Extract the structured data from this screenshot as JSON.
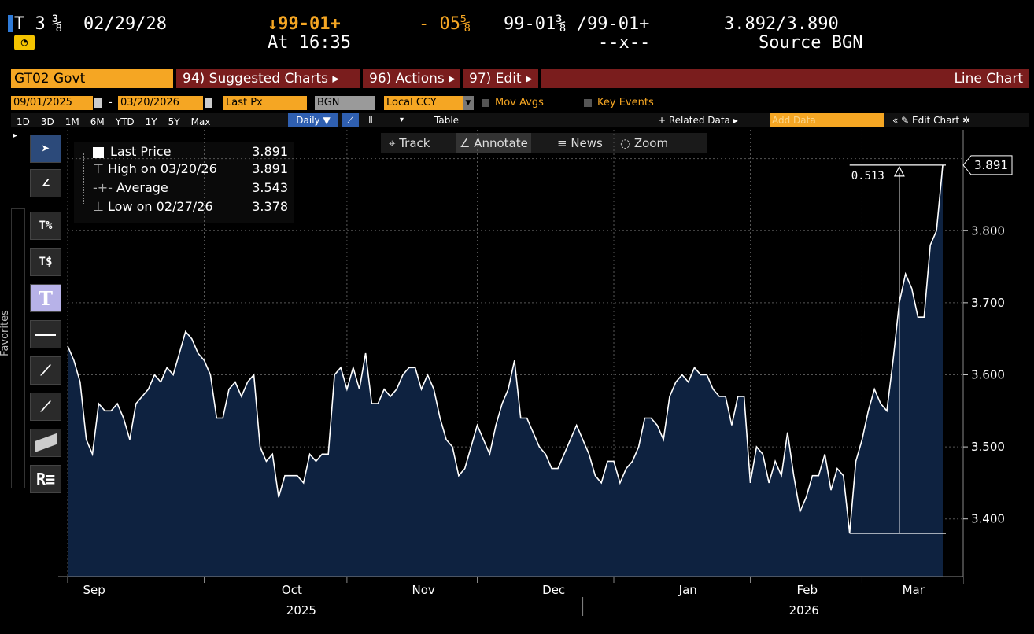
{
  "header": {
    "ticker": "T 3",
    "coupon_frac": "⅜",
    "maturity": "02/29/28",
    "price": "↓99-01+",
    "change": "- 05⅝",
    "bid_ask": "99-01⅜ /99-01+",
    "yield_pair": "3.892/3.890",
    "time": "At 16:35",
    "size": "--x--",
    "source": "Source BGN"
  },
  "menubar": {
    "security": "GT02 Govt",
    "suggested": "94) Suggested Charts ▸",
    "actions": "96) Actions ▸",
    "edit": "97) Edit ▸",
    "chart_type": "Line Chart"
  },
  "filters": {
    "start_date": "09/01/2025",
    "end_date": "03/20/2026",
    "field": "Last Px",
    "source": "BGN",
    "currency": "Local CCY",
    "mov_avgs": "Mov Avgs",
    "key_events": "Key Events"
  },
  "tabs": [
    "1D",
    "3D",
    "1M",
    "6M",
    "YTD",
    "1Y",
    "5Y",
    "Max"
  ],
  "period": "Daily ▼",
  "table_label": "Table",
  "related_data": "+ Related Data ▸",
  "add_data_placeholder": "Add Data",
  "edit_chart": "« ✎ Edit Chart ✲",
  "toolbar": {
    "track": "⌖ Track",
    "annotate": "∠ Annotate",
    "news": "≡ News",
    "zoom": "◌ Zoom"
  },
  "favorites_label": "Favorites",
  "legend": [
    {
      "label": "Last Price",
      "value": "3.891"
    },
    {
      "label": "High on 03/20/26",
      "value": "3.891"
    },
    {
      "label": "Average",
      "value": "3.543"
    },
    {
      "label": "Low on 02/27/26",
      "value": "3.378"
    }
  ],
  "measure_label": "0.513",
  "last_value_tag": "3.891",
  "colors": {
    "accent": "#f5a623",
    "fill": "#0e2240",
    "line": "#ffffff",
    "menu_red": "#7a1d1d"
  },
  "chart_data": {
    "type": "area",
    "ylim": [
      3.32,
      3.94
    ],
    "yticks": [
      "3.400",
      "3.500",
      "3.600",
      "3.700",
      "3.800"
    ],
    "ytick_values": [
      3.4,
      3.5,
      3.6,
      3.7,
      3.8
    ],
    "month_labels": [
      "Sep",
      "Oct",
      "Nov",
      "Dec",
      "Jan",
      "Feb",
      "Mar"
    ],
    "year_labels": [
      "2025",
      "2026"
    ],
    "y": [
      3.64,
      3.62,
      3.59,
      3.51,
      3.49,
      3.56,
      3.55,
      3.55,
      3.56,
      3.54,
      3.51,
      3.56,
      3.57,
      3.58,
      3.6,
      3.59,
      3.61,
      3.6,
      3.63,
      3.66,
      3.65,
      3.63,
      3.62,
      3.6,
      3.54,
      3.54,
      3.58,
      3.59,
      3.57,
      3.59,
      3.6,
      3.5,
      3.48,
      3.49,
      3.43,
      3.46,
      3.46,
      3.46,
      3.45,
      3.49,
      3.48,
      3.49,
      3.49,
      3.6,
      3.61,
      3.58,
      3.61,
      3.58,
      3.63,
      3.56,
      3.56,
      3.58,
      3.57,
      3.58,
      3.6,
      3.61,
      3.61,
      3.58,
      3.6,
      3.58,
      3.54,
      3.51,
      3.5,
      3.46,
      3.47,
      3.5,
      3.53,
      3.51,
      3.49,
      3.53,
      3.56,
      3.58,
      3.62,
      3.54,
      3.54,
      3.52,
      3.5,
      3.49,
      3.47,
      3.47,
      3.49,
      3.51,
      3.53,
      3.51,
      3.49,
      3.46,
      3.45,
      3.48,
      3.48,
      3.45,
      3.47,
      3.48,
      3.5,
      3.54,
      3.54,
      3.53,
      3.51,
      3.57,
      3.59,
      3.6,
      3.59,
      3.61,
      3.6,
      3.6,
      3.58,
      3.57,
      3.57,
      3.53,
      3.57,
      3.57,
      3.45,
      3.5,
      3.49,
      3.45,
      3.48,
      3.46,
      3.52,
      3.46,
      3.41,
      3.43,
      3.46,
      3.46,
      3.49,
      3.44,
      3.47,
      3.46,
      3.38,
      3.48,
      3.51,
      3.55,
      3.58,
      3.56,
      3.55,
      3.62,
      3.7,
      3.74,
      3.72,
      3.68,
      3.68,
      3.78,
      3.8,
      3.891
    ]
  }
}
